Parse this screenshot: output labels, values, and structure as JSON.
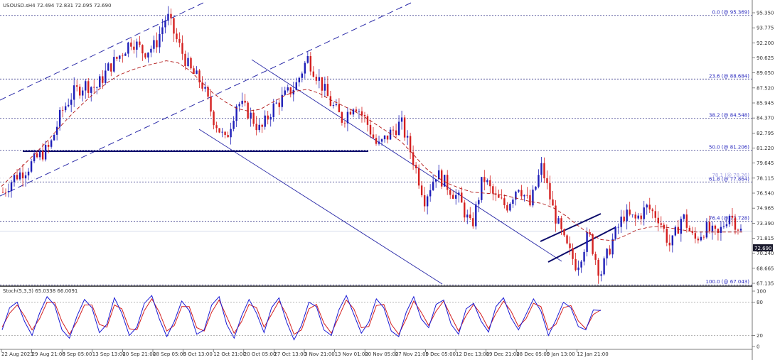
{
  "chart_data": {
    "type": "candlestick",
    "symbol_line": "USOUSD.sH4  72.494 72.831 72.095 72.690",
    "last_price": "72.690",
    "ylim": [
      67.135,
      96.505
    ],
    "price_ticks": [
      "95.350",
      "93.775",
      "92.200",
      "90.625",
      "89.050",
      "87.520",
      "85.945",
      "84.370",
      "82.795",
      "81.220",
      "79.645",
      "78.115",
      "76.540",
      "74.965",
      "73.390",
      "71.815",
      "70.240",
      "68.665",
      "67.135"
    ],
    "time_labels": [
      "22 Aug 2023",
      "29 Aug 21:00",
      "6 Sep 05:00",
      "13 Sep 13:00",
      "20 Sep 21:00",
      "28 Sep 05:00",
      "5 Oct 13:00",
      "12 Oct 21:00",
      "20 Oct 05:00",
      "27 Oct 13:00",
      "3 Nov 21:00",
      "13 Nov 01:00",
      "20 Nov 05:00",
      "27 Nov 21:00",
      "5 Dec 05:00",
      "12 Dec 13:00",
      "19 Dec 21:00",
      "28 Dec 05:00",
      "5 Jan 13:00",
      "12 Jan 21:00"
    ],
    "fibonacci": [
      {
        "label": "0.0 (@ 95.369)",
        "price": 95.369
      },
      {
        "label": "23.6 (@ 88.684)",
        "price": 88.684
      },
      {
        "label": "38.2 (@ 84.548)",
        "price": 84.548
      },
      {
        "label": "50.0 (@ 81.206)",
        "price": 81.206
      },
      {
        "label": "61.8 (@ 77.864)",
        "price": 77.864
      },
      {
        "label": "76.4 (@ 73.728)",
        "price": 73.728
      },
      {
        "label": "100.0 (@ 67.043)",
        "price": 67.043
      }
    ],
    "faint_level": {
      "label": "78.1 (@ 78.26)",
      "price": 78.26
    },
    "path_price": [
      76.8,
      78.4,
      79.2,
      80.5,
      81.5,
      85.2,
      87.2,
      88.1,
      87.8,
      89.8,
      91.2,
      92.8,
      91.5,
      92.2,
      95.4,
      92.3,
      89.6,
      88.2,
      84.5,
      82.1,
      86.3,
      85.1,
      83.2,
      85.6,
      86.8,
      88.0,
      90.9,
      88.6,
      86.1,
      84.4,
      86.2,
      84.3,
      81.5,
      82.9,
      84.1,
      80.3,
      76.1,
      78.8,
      77.4,
      75.9,
      73.0,
      78.4,
      76.2,
      75.3,
      77.6,
      75.4,
      79.5,
      74.8,
      71.3,
      69.0,
      72.4,
      68.1,
      71.6,
      74.4,
      73.9,
      75.2,
      74.1,
      71.0,
      74.4,
      71.7,
      73.0,
      72.1,
      74.6,
      72.7
    ],
    "moving_average_price": [
      77.4,
      78.6,
      79.8,
      81.0,
      82.3,
      83.7,
      85.0,
      86.2,
      87.3,
      88.3,
      89.1,
      89.6,
      90.0,
      90.3,
      90.6,
      90.4,
      89.6,
      88.4,
      87.2,
      86.3,
      85.6,
      85.3,
      85.5,
      86.2,
      86.9,
      87.4,
      87.6,
      87.2,
      86.5,
      85.9,
      85.3,
      84.6,
      83.8,
      83.0,
      82.1,
      80.8,
      79.4,
      78.4,
      77.7,
      77.2,
      76.8,
      76.7,
      76.6,
      76.4,
      76.1,
      75.8,
      75.6,
      75.1,
      74.3,
      73.3,
      72.4,
      71.8,
      71.7,
      72.2,
      72.8,
      73.1,
      73.2,
      73.0,
      72.8,
      72.6,
      72.6,
      72.6,
      72.6,
      72.6
    ],
    "stochastic": {
      "header": "Stoch(5,3,3) 65.0338 66.0091",
      "levels": [
        "100",
        "80",
        "20",
        "0"
      ],
      "ylim": [
        0,
        100
      ],
      "main_values": [
        30,
        70,
        80,
        45,
        20,
        60,
        90,
        75,
        30,
        15,
        55,
        85,
        70,
        25,
        40,
        88,
        60,
        20,
        35,
        78,
        92,
        50,
        18,
        45,
        82,
        65,
        22,
        30,
        75,
        90,
        40,
        15,
        55,
        85,
        60,
        25,
        70,
        88,
        45,
        12,
        38,
        80,
        72,
        30,
        20,
        66,
        92,
        58,
        24,
        44,
        86,
        70,
        28,
        18,
        62,
        90,
        50,
        34,
        76,
        84,
        40,
        22,
        68,
        78,
        46,
        26,
        72,
        88,
        52,
        30,
        58,
        86,
        64,
        20,
        48,
        80,
        70,
        36,
        30,
        66,
        65
      ],
      "signal_values": [
        35,
        60,
        75,
        55,
        30,
        50,
        80,
        80,
        45,
        22,
        45,
        75,
        75,
        40,
        35,
        75,
        68,
        32,
        30,
        65,
        86,
        62,
        28,
        38,
        72,
        72,
        34,
        28,
        62,
        84,
        54,
        24,
        45,
        76,
        70,
        35,
        58,
        82,
        58,
        22,
        30,
        68,
        76,
        42,
        24,
        54,
        84,
        68,
        34,
        36,
        74,
        76,
        40,
        22,
        50,
        82,
        62,
        38,
        64,
        82,
        54,
        28,
        56,
        76,
        58,
        32,
        60,
        82,
        64,
        36,
        50,
        78,
        72,
        30,
        40,
        70,
        74,
        46,
        32,
        58,
        66
      ]
    },
    "trendline_label": "",
    "colors": {
      "bull": "#1f1fb8",
      "bear": "#d42020",
      "ma": "#b01414",
      "fib": "#2b2bbf",
      "channel": "#2a2aa8",
      "horizontal_level": "#0b0b6b",
      "grid_dots": "#3a3a8c",
      "price_tag_bg": "#1b1b2e",
      "stoch_main": "#1b1bd6",
      "stoch_signal": "#d42020"
    }
  }
}
